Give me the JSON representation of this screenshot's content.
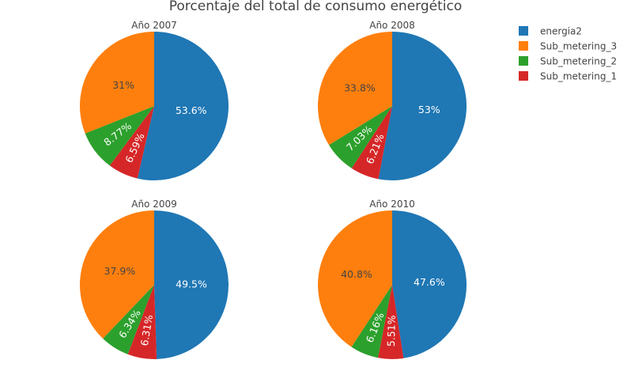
{
  "chart_data": {
    "type": "pie",
    "title": "Porcentaje del total de consumo energético",
    "legend_position": "top-right",
    "legend": [
      {
        "name": "energia2",
        "color": "#1f77b4"
      },
      {
        "name": "Sub_metering_3",
        "color": "#ff7f0e"
      },
      {
        "name": "Sub_metering_2",
        "color": "#2ca02c"
      },
      {
        "name": "Sub_metering_1",
        "color": "#d62728"
      }
    ],
    "pies": [
      {
        "title": "Año 2007",
        "slices": [
          {
            "name": "energia2",
            "value": 53.6,
            "label": "53.6%"
          },
          {
            "name": "Sub_metering_1",
            "value": 6.59,
            "label": "6.59%"
          },
          {
            "name": "Sub_metering_2",
            "value": 8.77,
            "label": "8.77%"
          },
          {
            "name": "Sub_metering_3",
            "value": 31.0,
            "label": "31%"
          }
        ]
      },
      {
        "title": "Año 2008",
        "slices": [
          {
            "name": "energia2",
            "value": 53.0,
            "label": "53%"
          },
          {
            "name": "Sub_metering_1",
            "value": 6.21,
            "label": "6.21%"
          },
          {
            "name": "Sub_metering_2",
            "value": 7.03,
            "label": "7.03%"
          },
          {
            "name": "Sub_metering_3",
            "value": 33.8,
            "label": "33.8%"
          }
        ]
      },
      {
        "title": "Año 2009",
        "slices": [
          {
            "name": "energia2",
            "value": 49.5,
            "label": "49.5%"
          },
          {
            "name": "Sub_metering_1",
            "value": 6.31,
            "label": "6.31%"
          },
          {
            "name": "Sub_metering_2",
            "value": 6.34,
            "label": "6.34%"
          },
          {
            "name": "Sub_metering_3",
            "value": 37.9,
            "label": "37.9%"
          }
        ]
      },
      {
        "title": "Año 2010",
        "slices": [
          {
            "name": "energia2",
            "value": 47.6,
            "label": "47.6%"
          },
          {
            "name": "Sub_metering_1",
            "value": 5.51,
            "label": "5.51%"
          },
          {
            "name": "Sub_metering_2",
            "value": 6.16,
            "label": "6.16%"
          },
          {
            "name": "Sub_metering_3",
            "value": 40.8,
            "label": "40.8%"
          }
        ]
      }
    ]
  }
}
